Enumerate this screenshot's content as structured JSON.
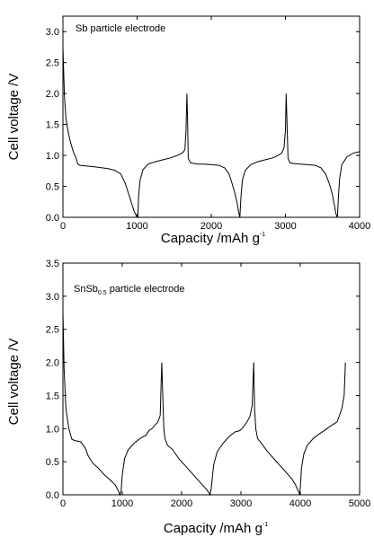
{
  "chart_data": [
    {
      "type": "line",
      "xlabel": "Capacity /mAh g",
      "xlabel_sup": "-1",
      "ylabel": "Cell voltage /V",
      "xlim": [
        0,
        4000
      ],
      "ylim": [
        0,
        3.25
      ],
      "xticks": [
        0,
        1000,
        2000,
        3000,
        4000
      ],
      "xtick_labels": [
        "0",
        "1000",
        "2000",
        "3000",
        "4000"
      ],
      "yticks": [
        0,
        0.5,
        1.0,
        1.5,
        2.0,
        2.5,
        3.0
      ],
      "ytick_labels": [
        "0.0",
        "0.5",
        "1.0",
        "1.5",
        "2.0",
        "2.5",
        "3.0"
      ],
      "annotation": "Sb particle electrode",
      "grid": false,
      "series": [
        {
          "x": [
            0,
            20,
            40,
            70,
            100,
            140,
            180,
            200,
            230,
            400,
            600,
            700,
            780,
            840,
            880,
            920,
            960,
            990,
            1010,
            1020,
            1040,
            1080,
            1150,
            1250,
            1350,
            1450,
            1520,
            1580,
            1620,
            1645,
            1660,
            1672,
            1680,
            1690,
            1720,
            1760,
            1820,
            1900,
            2000,
            2100,
            2180,
            2240,
            2280,
            2320,
            2350,
            2370,
            2385,
            2400,
            2420,
            2460,
            2530,
            2630,
            2730,
            2830,
            2900,
            2950,
            2980,
            3000,
            3010,
            3020,
            3035,
            3060,
            3100,
            3200,
            3300,
            3400,
            3480,
            3540,
            3590,
            3630,
            3660,
            3680,
            3700,
            3715,
            3730,
            3760,
            3830,
            3920,
            4000
          ],
          "y": [
            2.75,
            1.95,
            1.6,
            1.38,
            1.22,
            1.06,
            0.95,
            0.86,
            0.84,
            0.82,
            0.79,
            0.76,
            0.7,
            0.55,
            0.4,
            0.25,
            0.1,
            0.02,
            0.0,
            0.35,
            0.6,
            0.77,
            0.86,
            0.9,
            0.93,
            0.96,
            0.99,
            1.02,
            1.05,
            1.1,
            1.4,
            2.0,
            1.6,
            0.95,
            0.88,
            0.87,
            0.86,
            0.86,
            0.85,
            0.84,
            0.8,
            0.7,
            0.55,
            0.38,
            0.22,
            0.08,
            0.0,
            0.33,
            0.6,
            0.76,
            0.85,
            0.9,
            0.93,
            0.96,
            1.0,
            1.04,
            1.12,
            1.4,
            2.0,
            1.6,
            0.95,
            0.88,
            0.87,
            0.86,
            0.85,
            0.84,
            0.8,
            0.7,
            0.55,
            0.38,
            0.2,
            0.06,
            0.0,
            0.35,
            0.62,
            0.85,
            0.98,
            1.04,
            1.06
          ]
        }
      ]
    },
    {
      "type": "line",
      "xlabel": "Capacity /mAh g",
      "xlabel_sup": "-1",
      "ylabel": "Cell voltage /V",
      "xlim": [
        0,
        5000
      ],
      "ylim": [
        0,
        3.5
      ],
      "xticks": [
        0,
        1000,
        2000,
        3000,
        4000,
        5000
      ],
      "xtick_labels": [
        "0",
        "1000",
        "2000",
        "3000",
        "4000",
        "5000"
      ],
      "yticks": [
        0,
        0.5,
        1.0,
        1.5,
        2.0,
        2.5,
        3.0,
        3.5
      ],
      "ytick_labels": [
        "0.0",
        "0.5",
        "1.0",
        "1.5",
        "2.0",
        "2.5",
        "3.0",
        "3.5"
      ],
      "annotation_prefix": "SnSb",
      "annotation_sub": "0.5",
      "annotation_suffix": " particle electrode",
      "grid": false,
      "series": [
        {
          "x": [
            0,
            20,
            50,
            100,
            150,
            200,
            300,
            380,
            420,
            500,
            600,
            700,
            800,
            880,
            940,
            960,
            980,
            1000,
            1040,
            1100,
            1200,
            1300,
            1400,
            1450,
            1500,
            1550,
            1600,
            1640,
            1665,
            1690,
            1700,
            1720,
            1760,
            1850,
            1950,
            2050,
            2150,
            2250,
            2350,
            2420,
            2460,
            2480,
            2500,
            2540,
            2600,
            2700,
            2800,
            2900,
            2980,
            3020,
            3060,
            3100,
            3150,
            3190,
            3215,
            3230,
            3250,
            3280,
            3350,
            3450,
            3550,
            3650,
            3750,
            3850,
            3920,
            3970,
            3990,
            4000,
            4020,
            4060,
            4120,
            4220,
            4320,
            4420,
            4480,
            4530,
            4580,
            4620,
            4660,
            4700,
            4740,
            4760
          ],
          "y": [
            2.77,
            1.9,
            1.3,
            1.0,
            0.84,
            0.82,
            0.8,
            0.7,
            0.6,
            0.48,
            0.4,
            0.3,
            0.22,
            0.15,
            0.05,
            0.0,
            0.05,
            0.3,
            0.55,
            0.68,
            0.78,
            0.85,
            0.9,
            0.97,
            1.0,
            1.05,
            1.1,
            1.2,
            2.0,
            1.3,
            1.0,
            0.85,
            0.75,
            0.68,
            0.55,
            0.45,
            0.35,
            0.25,
            0.15,
            0.08,
            0.03,
            0.0,
            0.1,
            0.45,
            0.65,
            0.78,
            0.88,
            0.95,
            0.97,
            1.0,
            1.05,
            1.1,
            1.18,
            1.35,
            2.0,
            1.3,
            1.0,
            0.85,
            0.77,
            0.65,
            0.55,
            0.45,
            0.35,
            0.25,
            0.15,
            0.05,
            0.0,
            0.1,
            0.4,
            0.62,
            0.75,
            0.85,
            0.92,
            0.98,
            1.02,
            1.05,
            1.08,
            1.1,
            1.2,
            1.3,
            1.5,
            2.0
          ]
        }
      ]
    }
  ]
}
